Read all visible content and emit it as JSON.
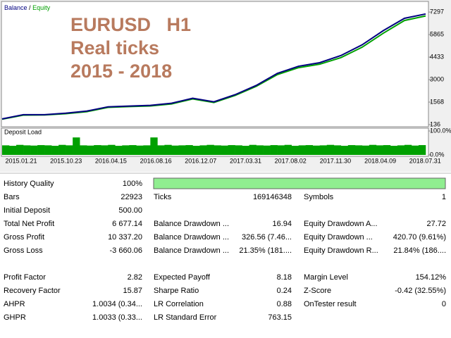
{
  "chart_data": [
    {
      "type": "line",
      "legend_separator": "/",
      "annotations": [
        "EURUSD   H1",
        "Real ticks",
        "2015 - 2018"
      ],
      "ylim": [
        0,
        7930
      ],
      "yticks": [
        136,
        1568,
        3000,
        4433,
        5865,
        7297
      ],
      "x_labels": [
        "2015.01.21",
        "2015.10.23",
        "2016.04.15",
        "2016.08.16",
        "2016.12.07",
        "2017.03.31",
        "2017.08.02",
        "2017.11.30",
        "2018.04.09",
        "2018.07.31"
      ],
      "series": [
        {
          "name": "Balance",
          "color": "#000080",
          "values": [
            500,
            770,
            770,
            861,
            997,
            1268,
            1314,
            1359,
            1495,
            1812,
            1585,
            2039,
            2628,
            3398,
            3851,
            4078,
            4531,
            5211,
            6116,
            6900,
            7177
          ]
        },
        {
          "name": "Equity",
          "color": "#00a000",
          "values": [
            480,
            740,
            750,
            830,
            960,
            1230,
            1280,
            1320,
            1450,
            1770,
            1540,
            1990,
            2570,
            3320,
            3760,
            3980,
            4400,
            5060,
            5950,
            6760,
            7050
          ]
        }
      ]
    },
    {
      "type": "bar",
      "title": "Deposit Load",
      "color": "#00a000",
      "ylim": [
        0,
        100
      ],
      "yticks": [
        {
          "value": 0,
          "label": "0.0%"
        },
        {
          "value": 100,
          "label": "100.0%"
        }
      ],
      "values": [
        40,
        38,
        42,
        40,
        39,
        41,
        40,
        38,
        42,
        40,
        73,
        40,
        39,
        41,
        40,
        42,
        38,
        40,
        41,
        39,
        40,
        73,
        40,
        42,
        39,
        40,
        41,
        38,
        40,
        42,
        40,
        39,
        41,
        40,
        38,
        42,
        40,
        39,
        41,
        40,
        42,
        38,
        40,
        41,
        39,
        40,
        42,
        40,
        38,
        41,
        40,
        39,
        42,
        40,
        41,
        38,
        40,
        42,
        39,
        41
      ]
    }
  ],
  "report": {
    "quality_label": "History Quality",
    "quality_value": "100%",
    "rows": [
      [
        [
          "Bars",
          "22923"
        ],
        [
          "Ticks",
          "169146348"
        ],
        [
          "Symbols",
          "1"
        ]
      ],
      [
        [
          "Initial Deposit",
          "500.00"
        ]
      ],
      [
        [
          "Total Net Profit",
          "6 677.14"
        ],
        [
          "Balance Drawdown ...",
          "16.94"
        ],
        [
          "Equity Drawdown A...",
          "27.72"
        ]
      ],
      [
        [
          "Gross Profit",
          "10 337.20"
        ],
        [
          "Balance Drawdown ...",
          "326.56 (7.46..."
        ],
        [
          "Equity Drawdown ...",
          "420.70 (9.61%)"
        ]
      ],
      [
        [
          "Gross Loss",
          "-3 660.06"
        ],
        [
          "Balance Drawdown ...",
          "21.35% (181...."
        ],
        [
          "Equity Drawdown R...",
          "21.84% (186...."
        ]
      ],
      [],
      [
        [
          "Profit Factor",
          "2.82"
        ],
        [
          "Expected Payoff",
          "8.18"
        ],
        [
          "Margin Level",
          "154.12%"
        ]
      ],
      [
        [
          "Recovery Factor",
          "15.87"
        ],
        [
          "Sharpe Ratio",
          "0.24"
        ],
        [
          "Z-Score",
          "-0.42 (32.55%)"
        ]
      ],
      [
        [
          "AHPR",
          "1.0034 (0.34..."
        ],
        [
          "LR Correlation",
          "0.88"
        ],
        [
          "OnTester result",
          "0"
        ]
      ],
      [
        [
          "GHPR",
          "1.0033 (0.33..."
        ],
        [
          "LR Standard Error",
          "763.15"
        ]
      ]
    ]
  }
}
